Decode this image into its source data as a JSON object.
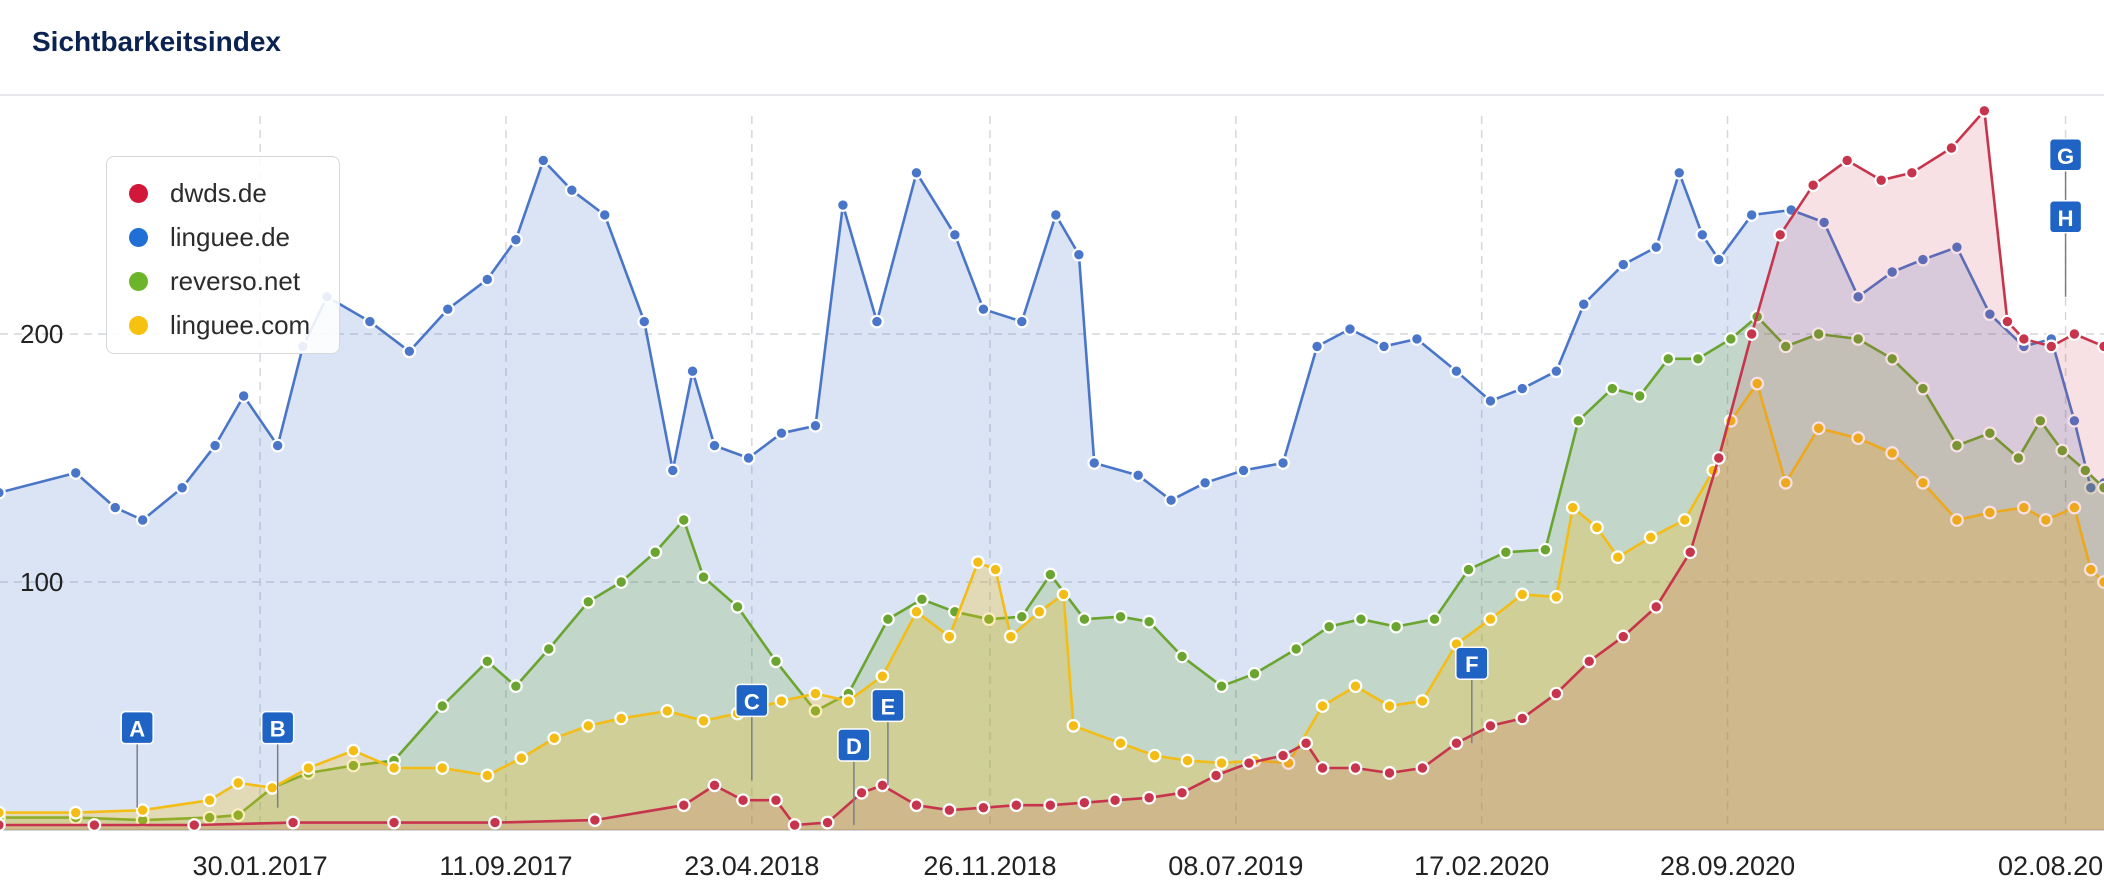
{
  "panel": {
    "title": "Sichtbarkeitsindex"
  },
  "chart_data": {
    "type": "area",
    "x_start": "2016-06-07",
    "x_end": "2021-09-06",
    "xticks": [
      {
        "date": "2017-01-30",
        "label": "30.01.2017"
      },
      {
        "date": "2017-09-11",
        "label": "11.09.2017"
      },
      {
        "date": "2018-04-23",
        "label": "23.04.2018"
      },
      {
        "date": "2018-11-26",
        "label": "26.11.2018"
      },
      {
        "date": "2019-07-08",
        "label": "08.07.2019"
      },
      {
        "date": "2020-02-17",
        "label": "17.02.2020"
      },
      {
        "date": "2020-09-28",
        "label": "28.09.2020"
      },
      {
        "date": "2021-08-02",
        "label": "02.08.2021"
      }
    ],
    "yticks": [
      100,
      200
    ],
    "ylim": [
      0,
      300
    ],
    "grid": true,
    "legend_position": "top-left",
    "series": [
      {
        "name": "linguee.de",
        "color": "#4a76c9",
        "fill": "rgba(74,118,201,0.20)",
        "points": [
          [
            "2016-06-06",
            136
          ],
          [
            "2016-08-15",
            144
          ],
          [
            "2016-09-20",
            130
          ],
          [
            "2016-10-15",
            125
          ],
          [
            "2016-11-20",
            138
          ],
          [
            "2016-12-20",
            155
          ],
          [
            "2017-01-15",
            175
          ],
          [
            "2017-02-15",
            155
          ],
          [
            "2017-03-10",
            195
          ],
          [
            "2017-04-01",
            215
          ],
          [
            "2017-05-10",
            205
          ],
          [
            "2017-06-15",
            193
          ],
          [
            "2017-07-20",
            210
          ],
          [
            "2017-08-25",
            222
          ],
          [
            "2017-09-20",
            238
          ],
          [
            "2017-10-15",
            270
          ],
          [
            "2017-11-10",
            258
          ],
          [
            "2017-12-10",
            248
          ],
          [
            "2018-01-15",
            205
          ],
          [
            "2018-02-10",
            145
          ],
          [
            "2018-02-28",
            185
          ],
          [
            "2018-03-20",
            155
          ],
          [
            "2018-04-20",
            150
          ],
          [
            "2018-05-20",
            160
          ],
          [
            "2018-06-20",
            163
          ],
          [
            "2018-07-15",
            252
          ],
          [
            "2018-08-15",
            205
          ],
          [
            "2018-09-20",
            265
          ],
          [
            "2018-10-25",
            240
          ],
          [
            "2018-11-20",
            210
          ],
          [
            "2018-12-25",
            205
          ],
          [
            "2019-01-25",
            248
          ],
          [
            "2019-02-15",
            232
          ],
          [
            "2019-03-01",
            148
          ],
          [
            "2019-04-10",
            143
          ],
          [
            "2019-05-10",
            133
          ],
          [
            "2019-06-10",
            140
          ],
          [
            "2019-07-15",
            145
          ],
          [
            "2019-08-20",
            148
          ],
          [
            "2019-09-20",
            195
          ],
          [
            "2019-10-20",
            202
          ],
          [
            "2019-11-20",
            195
          ],
          [
            "2019-12-20",
            198
          ],
          [
            "2020-01-25",
            185
          ],
          [
            "2020-02-25",
            173
          ],
          [
            "2020-03-25",
            178
          ],
          [
            "2020-04-25",
            185
          ],
          [
            "2020-05-20",
            212
          ],
          [
            "2020-06-25",
            228
          ],
          [
            "2020-07-25",
            235
          ],
          [
            "2020-08-15",
            265
          ],
          [
            "2020-09-05",
            240
          ],
          [
            "2020-09-20",
            230
          ],
          [
            "2020-10-20",
            248
          ],
          [
            "2020-11-25",
            250
          ],
          [
            "2020-12-25",
            245
          ],
          [
            "2021-01-25",
            215
          ],
          [
            "2021-02-25",
            225
          ],
          [
            "2021-03-25",
            230
          ],
          [
            "2021-04-25",
            235
          ],
          [
            "2021-05-25",
            208
          ],
          [
            "2021-06-25",
            195
          ],
          [
            "2021-07-20",
            198
          ],
          [
            "2021-08-10",
            165
          ],
          [
            "2021-08-25",
            138
          ],
          [
            "2021-09-06",
            140
          ]
        ]
      },
      {
        "name": "reverso.net",
        "color": "#6aa530",
        "fill": "rgba(106,165,48,0.22)",
        "points": [
          [
            "2016-06-06",
            5
          ],
          [
            "2016-08-15",
            5
          ],
          [
            "2016-10-15",
            4
          ],
          [
            "2016-12-15",
            5
          ],
          [
            "2017-01-10",
            6
          ],
          [
            "2017-02-10",
            17
          ],
          [
            "2017-03-15",
            23
          ],
          [
            "2017-04-25",
            26
          ],
          [
            "2017-06-01",
            28
          ],
          [
            "2017-07-15",
            50
          ],
          [
            "2017-08-25",
            68
          ],
          [
            "2017-09-20",
            58
          ],
          [
            "2017-10-20",
            73
          ],
          [
            "2017-11-25",
            92
          ],
          [
            "2017-12-25",
            100
          ],
          [
            "2018-01-25",
            112
          ],
          [
            "2018-02-20",
            125
          ],
          [
            "2018-03-10",
            102
          ],
          [
            "2018-04-10",
            90
          ],
          [
            "2018-05-15",
            68
          ],
          [
            "2018-06-20",
            48
          ],
          [
            "2018-07-20",
            55
          ],
          [
            "2018-08-25",
            85
          ],
          [
            "2018-09-25",
            93
          ],
          [
            "2018-10-25",
            88
          ],
          [
            "2018-11-25",
            85
          ],
          [
            "2018-12-25",
            86
          ],
          [
            "2019-01-20",
            103
          ],
          [
            "2019-02-20",
            85
          ],
          [
            "2019-03-25",
            86
          ],
          [
            "2019-04-20",
            84
          ],
          [
            "2019-05-20",
            70
          ],
          [
            "2019-06-25",
            58
          ],
          [
            "2019-07-25",
            63
          ],
          [
            "2019-09-01",
            73
          ],
          [
            "2019-10-01",
            82
          ],
          [
            "2019-10-30",
            85
          ],
          [
            "2019-12-01",
            82
          ],
          [
            "2020-01-05",
            85
          ],
          [
            "2020-02-05",
            105
          ],
          [
            "2020-03-10",
            112
          ],
          [
            "2020-04-15",
            113
          ],
          [
            "2020-05-15",
            165
          ],
          [
            "2020-06-15",
            178
          ],
          [
            "2020-07-10",
            175
          ],
          [
            "2020-08-05",
            190
          ],
          [
            "2020-09-01",
            190
          ],
          [
            "2020-10-01",
            198
          ],
          [
            "2020-10-25",
            207
          ],
          [
            "2020-11-20",
            195
          ],
          [
            "2020-12-20",
            200
          ],
          [
            "2021-01-25",
            198
          ],
          [
            "2021-02-25",
            190
          ],
          [
            "2021-03-25",
            178
          ],
          [
            "2021-04-25",
            155
          ],
          [
            "2021-05-25",
            160
          ],
          [
            "2021-06-20",
            150
          ],
          [
            "2021-07-10",
            165
          ],
          [
            "2021-07-30",
            153
          ],
          [
            "2021-08-20",
            145
          ],
          [
            "2021-09-06",
            138
          ]
        ]
      },
      {
        "name": "linguee.com",
        "color": "#f4bd16",
        "fill": "rgba(244,189,22,0.28)",
        "points": [
          [
            "2016-06-06",
            7
          ],
          [
            "2016-08-15",
            7
          ],
          [
            "2016-10-15",
            8
          ],
          [
            "2016-12-15",
            12
          ],
          [
            "2017-01-10",
            19
          ],
          [
            "2017-02-10",
            17
          ],
          [
            "2017-03-15",
            25
          ],
          [
            "2017-04-25",
            32
          ],
          [
            "2017-06-01",
            25
          ],
          [
            "2017-07-15",
            25
          ],
          [
            "2017-08-25",
            22
          ],
          [
            "2017-09-25",
            29
          ],
          [
            "2017-10-25",
            37
          ],
          [
            "2017-11-25",
            42
          ],
          [
            "2017-12-25",
            45
          ],
          [
            "2018-02-05",
            48
          ],
          [
            "2018-03-10",
            44
          ],
          [
            "2018-04-10",
            47
          ],
          [
            "2018-05-20",
            52
          ],
          [
            "2018-06-20",
            55
          ],
          [
            "2018-07-20",
            52
          ],
          [
            "2018-08-20",
            62
          ],
          [
            "2018-09-20",
            88
          ],
          [
            "2018-10-20",
            78
          ],
          [
            "2018-11-15",
            108
          ],
          [
            "2018-12-01",
            105
          ],
          [
            "2018-12-15",
            78
          ],
          [
            "2019-01-10",
            88
          ],
          [
            "2019-02-01",
            95
          ],
          [
            "2019-02-10",
            42
          ],
          [
            "2019-03-25",
            35
          ],
          [
            "2019-04-25",
            30
          ],
          [
            "2019-05-25",
            28
          ],
          [
            "2019-06-25",
            27
          ],
          [
            "2019-07-25",
            28
          ],
          [
            "2019-08-25",
            27
          ],
          [
            "2019-09-25",
            50
          ],
          [
            "2019-10-25",
            58
          ],
          [
            "2019-11-25",
            50
          ],
          [
            "2019-12-25",
            52
          ],
          [
            "2020-01-25",
            75
          ],
          [
            "2020-02-25",
            85
          ],
          [
            "2020-03-25",
            95
          ],
          [
            "2020-04-25",
            94
          ],
          [
            "2020-05-10",
            130
          ],
          [
            "2020-06-01",
            122
          ],
          [
            "2020-06-20",
            110
          ],
          [
            "2020-07-20",
            118
          ],
          [
            "2020-08-20",
            125
          ],
          [
            "2020-09-15",
            145
          ],
          [
            "2020-10-01",
            165
          ],
          [
            "2020-10-25",
            180
          ],
          [
            "2020-11-20",
            140
          ],
          [
            "2020-12-20",
            162
          ],
          [
            "2021-01-25",
            158
          ],
          [
            "2021-02-25",
            152
          ],
          [
            "2021-03-25",
            140
          ],
          [
            "2021-04-25",
            125
          ],
          [
            "2021-05-25",
            128
          ],
          [
            "2021-06-25",
            130
          ],
          [
            "2021-07-15",
            125
          ],
          [
            "2021-08-10",
            130
          ],
          [
            "2021-08-25",
            105
          ],
          [
            "2021-09-06",
            100
          ]
        ]
      },
      {
        "name": "dwds.de",
        "color": "#c7354c",
        "fill": "rgba(199,53,76,0.15)",
        "points": [
          [
            "2016-06-06",
            2
          ],
          [
            "2016-09-01",
            2
          ],
          [
            "2016-12-01",
            2
          ],
          [
            "2017-03-01",
            3
          ],
          [
            "2017-06-01",
            3
          ],
          [
            "2017-09-01",
            3
          ],
          [
            "2017-12-01",
            4
          ],
          [
            "2018-02-20",
            10
          ],
          [
            "2018-03-20",
            18
          ],
          [
            "2018-04-15",
            12
          ],
          [
            "2018-05-15",
            12
          ],
          [
            "2018-06-01",
            2
          ],
          [
            "2018-07-01",
            3
          ],
          [
            "2018-08-01",
            15
          ],
          [
            "2018-08-20",
            18
          ],
          [
            "2018-09-20",
            10
          ],
          [
            "2018-10-20",
            8
          ],
          [
            "2018-11-20",
            9
          ],
          [
            "2018-12-20",
            10
          ],
          [
            "2019-01-20",
            10
          ],
          [
            "2019-02-20",
            11
          ],
          [
            "2019-03-20",
            12
          ],
          [
            "2019-04-20",
            13
          ],
          [
            "2019-05-20",
            15
          ],
          [
            "2019-06-20",
            22
          ],
          [
            "2019-07-20",
            27
          ],
          [
            "2019-08-20",
            30
          ],
          [
            "2019-09-10",
            35
          ],
          [
            "2019-09-25",
            25
          ],
          [
            "2019-10-25",
            25
          ],
          [
            "2019-11-25",
            23
          ],
          [
            "2019-12-25",
            25
          ],
          [
            "2020-01-25",
            35
          ],
          [
            "2020-02-25",
            42
          ],
          [
            "2020-03-25",
            45
          ],
          [
            "2020-04-25",
            55
          ],
          [
            "2020-05-25",
            68
          ],
          [
            "2020-06-25",
            78
          ],
          [
            "2020-07-25",
            90
          ],
          [
            "2020-08-25",
            112
          ],
          [
            "2020-09-20",
            150
          ],
          [
            "2020-10-20",
            200
          ],
          [
            "2020-11-15",
            240
          ],
          [
            "2020-12-15",
            260
          ],
          [
            "2021-01-15",
            270
          ],
          [
            "2021-02-15",
            262
          ],
          [
            "2021-03-15",
            265
          ],
          [
            "2021-04-20",
            275
          ],
          [
            "2021-05-20",
            290
          ],
          [
            "2021-06-10",
            205
          ],
          [
            "2021-06-25",
            198
          ],
          [
            "2021-07-20",
            195
          ],
          [
            "2021-08-10",
            200
          ],
          [
            "2021-09-06",
            195
          ]
        ]
      }
    ],
    "annotations": [
      {
        "label": "A",
        "date": "2016-10-10",
        "y": 9
      },
      {
        "label": "B",
        "date": "2017-02-15",
        "y": 9
      },
      {
        "label": "C",
        "date": "2018-04-23",
        "y": 20
      },
      {
        "label": "D",
        "date": "2018-07-25",
        "y": 2
      },
      {
        "label": "E",
        "date": "2018-08-25",
        "y": 18
      },
      {
        "label": "F",
        "date": "2020-02-08",
        "y": 35
      },
      {
        "label": "G",
        "date": "2021-08-02",
        "y": 240
      },
      {
        "label": "H",
        "date": "2021-08-02",
        "y": 215
      }
    ]
  }
}
